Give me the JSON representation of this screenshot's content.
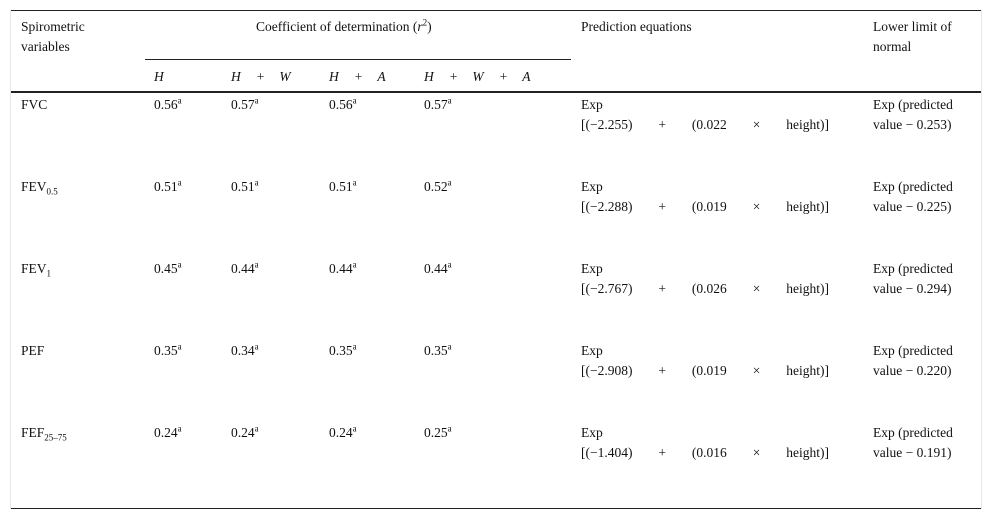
{
  "header": {
    "col1": "Spirometric variables",
    "col2_text": "Coefficient of determination (",
    "col2_var": "r",
    "col2_exp": "2",
    "col2_close": ")",
    "col3": "Prediction equations",
    "col4": "Lower limit of normal",
    "sub": [
      [
        "H"
      ],
      [
        "H",
        "+",
        "W"
      ],
      [
        "H",
        "+",
        "A"
      ],
      [
        "H",
        "+",
        "W",
        "+",
        "A"
      ]
    ]
  },
  "rows": [
    {
      "name": "FVC",
      "sub": "",
      "r2": [
        "0.56",
        "0.57",
        "0.56",
        "0.57"
      ],
      "sup": "a",
      "eq": [
        "Exp",
        "[(−2.255)",
        "+",
        "(0.022",
        "×",
        "height)]"
      ],
      "lln": "Exp (predicted value − 0.253)"
    },
    {
      "name": "FEV",
      "sub": "0.5",
      "r2": [
        "0.51",
        "0.51",
        "0.51",
        "0.52"
      ],
      "sup": "a",
      "eq": [
        "Exp",
        "[(−2.288)",
        "+",
        "(0.019",
        "×",
        "height)]"
      ],
      "lln": "Exp (predicted value − 0.225)"
    },
    {
      "name": "FEV",
      "sub": "1",
      "r2": [
        "0.45",
        "0.44",
        "0.44",
        "0.44"
      ],
      "sup": "a",
      "eq": [
        "Exp",
        "[(−2.767)",
        "+",
        "(0.026",
        "×",
        "height)]"
      ],
      "lln": "Exp (predicted value − 0.294)"
    },
    {
      "name": "PEF",
      "sub": "",
      "r2": [
        "0.35",
        "0.34",
        "0.35",
        "0.35"
      ],
      "sup": "a",
      "eq": [
        "Exp",
        "[(−2.908)",
        "+",
        "(0.019",
        "×",
        "height)]"
      ],
      "lln": "Exp (predicted value − 0.220)"
    },
    {
      "name": "FEF",
      "sub": "25–75",
      "r2": [
        "0.24",
        "0.24",
        "0.24",
        "0.25"
      ],
      "sup": "a",
      "eq": [
        "Exp",
        "[(−1.404)",
        "+",
        "(0.016",
        "×",
        "height)]"
      ],
      "lln": "Exp (predicted value − 0.191)"
    }
  ]
}
